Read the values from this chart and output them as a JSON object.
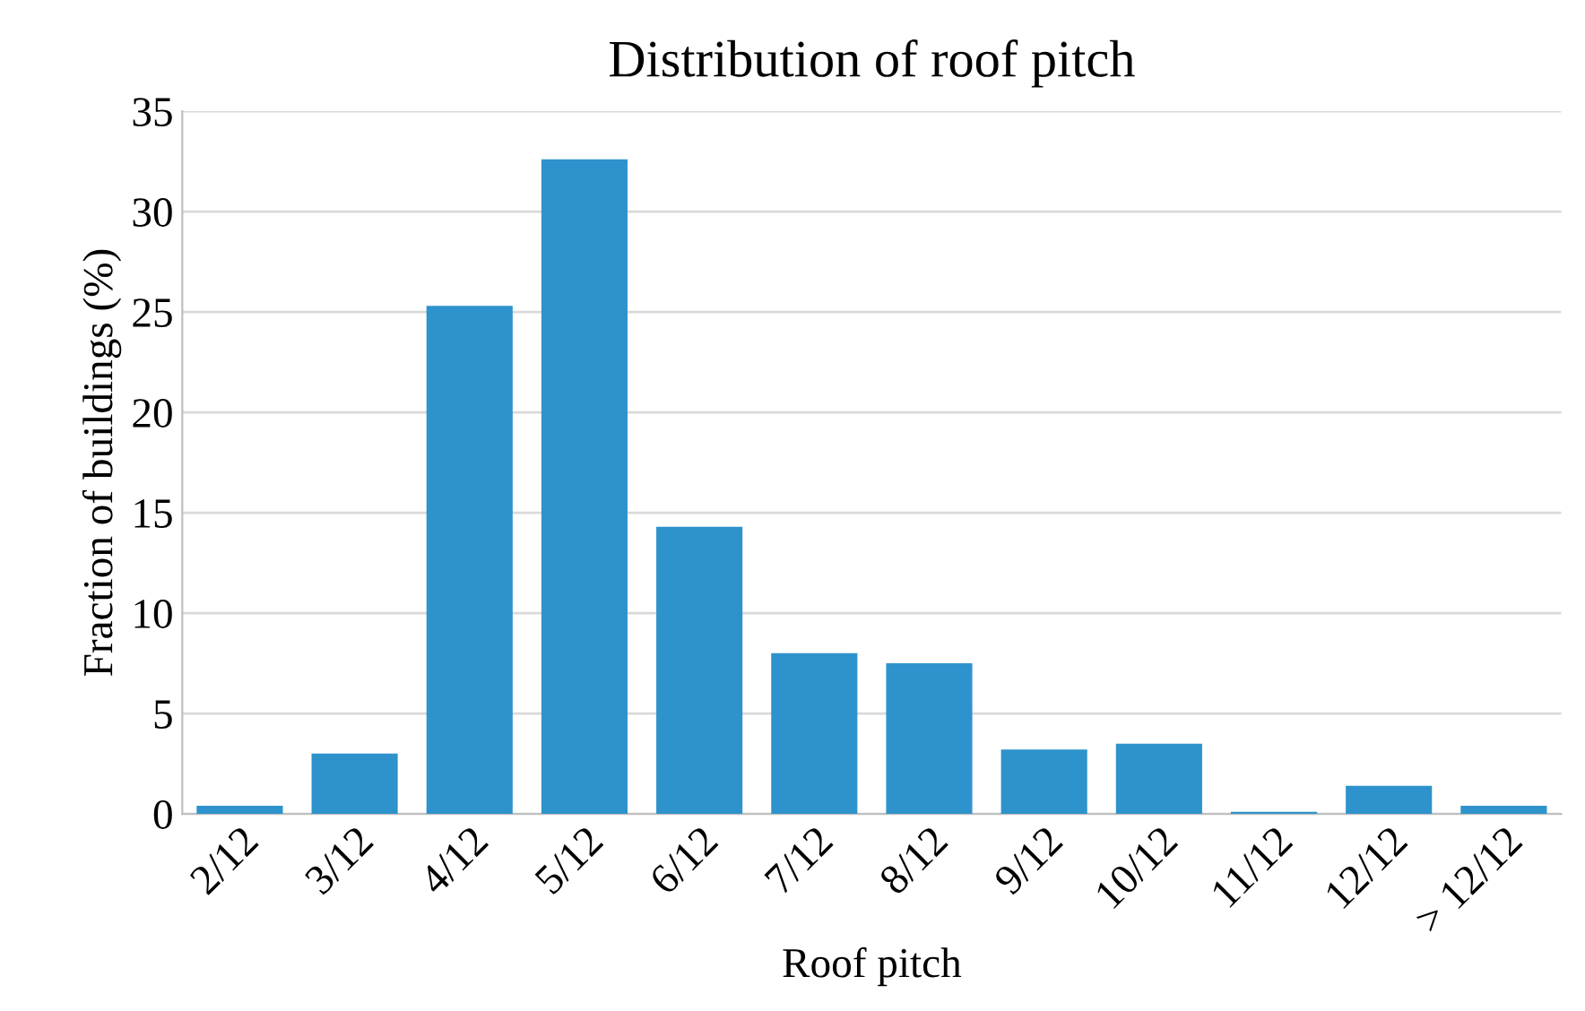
{
  "chart_data": {
    "type": "bar",
    "title": "Distribution of roof pitch",
    "xlabel": "Roof pitch",
    "ylabel": "Fraction of buildings (%)",
    "categories": [
      "2/12",
      "3/12",
      "4/12",
      "5/12",
      "6/12",
      "7/12",
      "8/12",
      "9/12",
      "10/12",
      "11/12",
      "12/12",
      "> 12/12"
    ],
    "values": [
      0.4,
      3.0,
      25.3,
      32.6,
      14.3,
      8.0,
      7.5,
      3.2,
      3.5,
      0.1,
      1.4,
      0.4
    ],
    "color": "#2e93cc",
    "ylim": [
      0,
      35
    ],
    "yticks": [
      0,
      5,
      10,
      15,
      20,
      25,
      30,
      35
    ],
    "grid": "y"
  }
}
